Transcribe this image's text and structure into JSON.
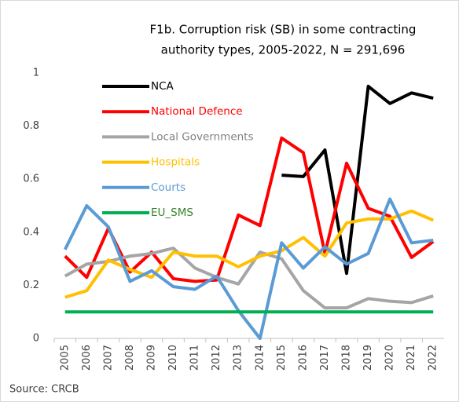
{
  "chart_data": {
    "type": "line",
    "title": [
      "F1b. Corruption risk (SB) in some contracting",
      "authority types, 2005-2022, N = 291,696"
    ],
    "source": "Source: CRCB",
    "categories": [
      "2005",
      "2006",
      "2007",
      "2008",
      "2009",
      "2010",
      "2011",
      "2012",
      "2013",
      "2014",
      "2015",
      "2016",
      "2017",
      "2018",
      "2019",
      "2020",
      "2021",
      "2022"
    ],
    "series": [
      {
        "name": "NCA",
        "color": "#000000",
        "values": [
          null,
          null,
          null,
          null,
          null,
          null,
          null,
          null,
          null,
          null,
          0.615,
          0.61,
          0.71,
          0.245,
          0.95,
          0.885,
          0.925,
          0.905
        ]
      },
      {
        "name": "National Defence",
        "color": "#ff0000",
        "values": [
          0.31,
          0.23,
          0.415,
          0.25,
          0.325,
          0.225,
          0.215,
          0.22,
          0.465,
          0.425,
          0.755,
          0.7,
          0.32,
          0.66,
          0.49,
          0.46,
          0.305,
          0.365
        ]
      },
      {
        "name": "Local Governments",
        "color": "#a5a5a5",
        "values": [
          0.235,
          0.28,
          0.29,
          0.31,
          0.32,
          0.34,
          0.265,
          0.23,
          0.205,
          0.325,
          0.3,
          0.18,
          0.115,
          0.115,
          0.15,
          0.14,
          0.135,
          0.16
        ]
      },
      {
        "name": "Hospitals",
        "color": "#ffc000",
        "values": [
          0.155,
          0.18,
          0.295,
          0.26,
          0.23,
          0.325,
          0.31,
          0.31,
          0.27,
          0.31,
          0.33,
          0.38,
          0.31,
          0.435,
          0.45,
          0.45,
          0.48,
          0.445
        ]
      },
      {
        "name": "Courts",
        "color": "#5b9bd5",
        "values": [
          0.335,
          0.5,
          0.42,
          0.215,
          0.255,
          0.195,
          0.185,
          0.235,
          0.105,
          0,
          0.36,
          0.265,
          0.345,
          0.28,
          0.32,
          0.525,
          0.36,
          0.37
        ]
      },
      {
        "name": "EU_SMS",
        "color": "#00b050",
        "values": [
          0.1,
          0.1,
          0.1,
          0.1,
          0.1,
          0.1,
          0.1,
          0.1,
          0.1,
          0.1,
          0.1,
          0.1,
          0.1,
          0.1,
          0.1,
          0.1,
          0.1,
          0.1
        ]
      }
    ],
    "ylim": [
      0,
      1
    ],
    "yticks": [
      0,
      0.2,
      0.4,
      0.6,
      0.8,
      1
    ]
  }
}
